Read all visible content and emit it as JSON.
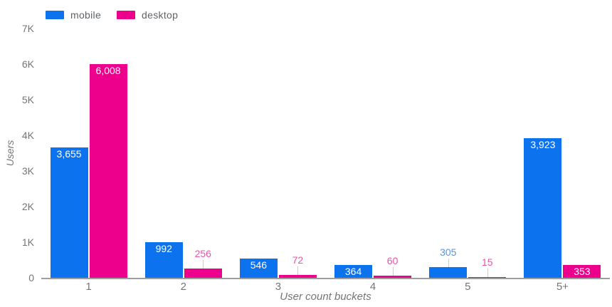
{
  "chart_data": {
    "type": "bar",
    "categories": [
      "1",
      "2",
      "3",
      "4",
      "5",
      "5+"
    ],
    "series": [
      {
        "name": "mobile",
        "color": "#0d72ed",
        "label_color": "#5d93e1",
        "values": [
          3655,
          992,
          546,
          364,
          305,
          3923
        ]
      },
      {
        "name": "desktop",
        "color": "#ec008c",
        "label_color": "#ea55a5",
        "values": [
          6008,
          256,
          72,
          60,
          15,
          353
        ]
      }
    ],
    "value_labels": {
      "mobile": [
        "3,655",
        "992",
        "546",
        "364",
        "305",
        "3,923"
      ],
      "desktop": [
        "6,008",
        "256",
        "72",
        "60",
        "15",
        "353"
      ]
    },
    "xlabel": "User count buckets",
    "ylabel": "Users",
    "ylim": [
      0,
      7000
    ],
    "ytick_step": 1000,
    "ytick_labels": [
      "0",
      "1K",
      "2K",
      "3K",
      "4K",
      "5K",
      "6K",
      "7K"
    ],
    "grid": false,
    "legend_position": "top-left",
    "style": {
      "axis_line_color": "#9e9e9e",
      "tick_label_color": "#757575",
      "axis_title_color": "#757575",
      "legend_text_color": "#5f6368",
      "connector_color": "#cccccc",
      "inside_label_color": "#ffffff",
      "background": "#ffffff"
    }
  }
}
